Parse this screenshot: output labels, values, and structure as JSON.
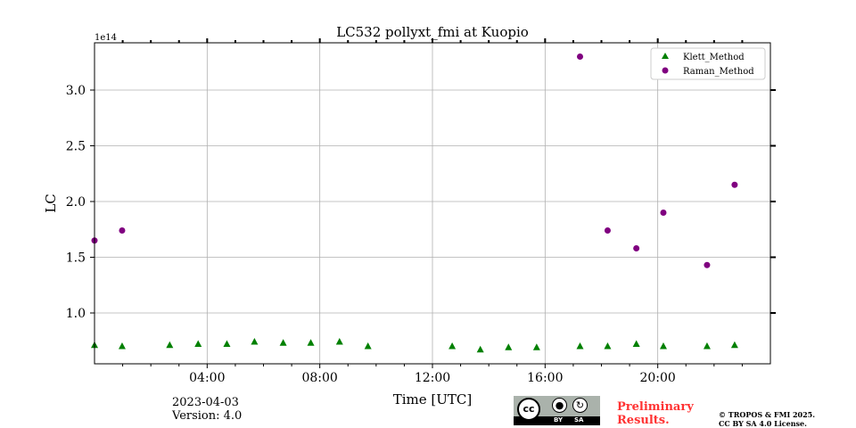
{
  "chart_data": {
    "type": "scatter",
    "title": "LC532 pollyxt_fmi at Kuopio",
    "xlabel": "Time [UTC]",
    "ylabel": "LC",
    "y_exponent_label": "1e14",
    "xlim_hours": [
      0,
      24
    ],
    "ylim": [
      0.544,
      3.424
    ],
    "x_ticks": [
      {
        "h": 4,
        "label": "04:00"
      },
      {
        "h": 8,
        "label": "08:00"
      },
      {
        "h": 12,
        "label": "12:00"
      },
      {
        "h": 16,
        "label": "16:00"
      },
      {
        "h": 20,
        "label": "20:00"
      }
    ],
    "y_ticks": [
      {
        "v": 1.0,
        "label": "1.0"
      },
      {
        "v": 1.5,
        "label": "1.5"
      },
      {
        "v": 2.0,
        "label": "2.0"
      },
      {
        "v": 2.5,
        "label": "2.5"
      },
      {
        "v": 3.0,
        "label": "3.0"
      }
    ],
    "grid": true,
    "legend_position": "top-right",
    "series": [
      {
        "name": "Klett_Method",
        "color": "#008000",
        "marker": "triangle",
        "x": [
          0,
          0.98,
          2.67,
          3.68,
          4.7,
          5.68,
          6.7,
          7.68,
          8.7,
          9.71,
          12.7,
          13.7,
          14.7,
          15.7,
          17.24,
          18.22,
          19.24,
          20.2,
          21.75,
          22.73
        ],
        "y": [
          0.71,
          0.7,
          0.71,
          0.72,
          0.72,
          0.74,
          0.73,
          0.73,
          0.74,
          0.7,
          0.7,
          0.67,
          0.69,
          0.69,
          0.7,
          0.7,
          0.72,
          0.7,
          0.7,
          0.71
        ]
      },
      {
        "name": "Raman_Method",
        "color": "#800080",
        "marker": "circle",
        "x": [
          0,
          0.98,
          17.24,
          18.22,
          19.24,
          20.2,
          21.75,
          22.73
        ],
        "y": [
          1.65,
          1.74,
          3.3,
          1.74,
          1.58,
          1.9,
          1.43,
          2.15
        ]
      }
    ]
  },
  "footer": {
    "date": "2023-04-03",
    "version": "Version: 4.0",
    "preliminary_line1": "Preliminary",
    "preliminary_line2": "Results.",
    "copyright_line1": "© TROPOS & FMI 2025.",
    "copyright_line2": "CC BY SA 4.0 License.",
    "cc_logo": {
      "cc": "cc",
      "by": "BY",
      "sa": "SA"
    }
  }
}
